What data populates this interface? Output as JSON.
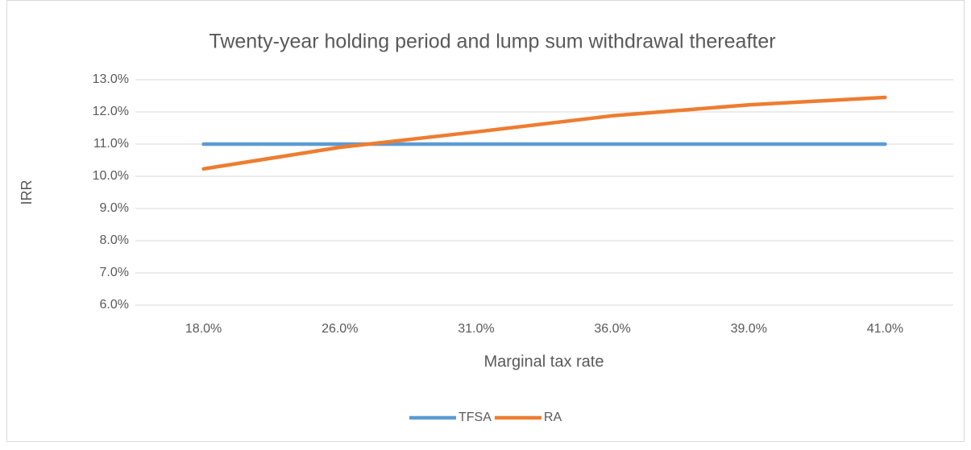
{
  "chart_data": {
    "type": "line",
    "title": "Twenty-year holding period and lump sum withdrawal thereafter",
    "x_label": "Marginal tax rate",
    "y_label": "IRR",
    "categories": [
      "18.0%",
      "26.0%",
      "31.0%",
      "36.0%",
      "39.0%",
      "41.0%"
    ],
    "series": [
      {
        "name": "TFSA",
        "color": "#5b9bd5",
        "values": [
          11.0,
          11.0,
          11.0,
          11.0,
          11.0,
          11.0
        ]
      },
      {
        "name": "RA",
        "color": "#ed7d31",
        "values": [
          10.23,
          10.9,
          11.38,
          11.88,
          12.22,
          12.45
        ]
      }
    ],
    "ylim": [
      6,
      13
    ],
    "yticks": [
      {
        "value": 6,
        "label": "6.0%"
      },
      {
        "value": 7,
        "label": "7.0%"
      },
      {
        "value": 8,
        "label": "8.0%"
      },
      {
        "value": 9,
        "label": "9.0%"
      },
      {
        "value": 10,
        "label": "10.0%"
      },
      {
        "value": 11,
        "label": "11.0%"
      },
      {
        "value": 12,
        "label": "12.0%"
      },
      {
        "value": 13,
        "label": "13.0%"
      }
    ],
    "grid": true,
    "legend": "bottom"
  }
}
